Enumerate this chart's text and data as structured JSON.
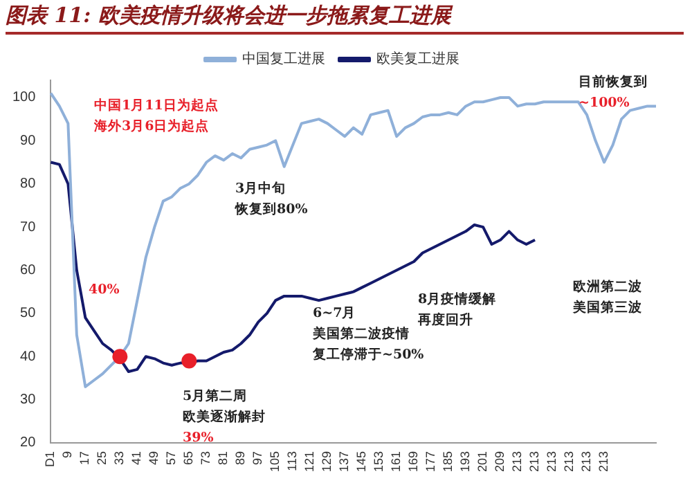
{
  "chart_data": {
    "type": "line",
    "title": "图表 11: 欧美疫情升级将会进一步拖累复工进展",
    "categories": [
      "D1",
      null,
      "9",
      null,
      "17",
      null,
      "25",
      null,
      "33",
      null,
      "41",
      null,
      "49",
      null,
      "57",
      null,
      "65",
      null,
      "73",
      null,
      "81",
      null,
      "89",
      null,
      "97",
      null,
      "105",
      null,
      "113",
      null,
      "121",
      null,
      "129",
      null,
      "137",
      null,
      "145",
      null,
      "153",
      null,
      "161",
      null,
      "169",
      null,
      "177",
      null,
      "185",
      null,
      "193",
      null,
      "201",
      null,
      "209",
      null,
      "213",
      null,
      "213",
      null,
      "213",
      null,
      "213",
      null,
      "213",
      null,
      "213",
      null,
      null,
      null,
      null,
      null,
      null
    ],
    "series": [
      {
        "name": "中国复工进展",
        "color": "#8fb0d9",
        "values": [
          101,
          98,
          94,
          45,
          33,
          34.5,
          36,
          38,
          40,
          43,
          53,
          63,
          70,
          76,
          77,
          79,
          80,
          82,
          85,
          86.5,
          85.5,
          87,
          86,
          88,
          88.5,
          89,
          90,
          84,
          89,
          94,
          94.5,
          95,
          94,
          92.5,
          91,
          93,
          91.5,
          96,
          96.5,
          97,
          91,
          93,
          94,
          95.5,
          96,
          96,
          96.5,
          96,
          98,
          99,
          99,
          99.5,
          100,
          100,
          98,
          98.5,
          98.5,
          99,
          99,
          99,
          99,
          99,
          96,
          90,
          85,
          89,
          95,
          97,
          97.5,
          98,
          98
        ]
      },
      {
        "name": "欧美复工进展",
        "color": "#141a6b",
        "values": [
          85,
          84.5,
          80,
          60,
          49,
          46,
          43,
          41.5,
          39.5,
          36.5,
          37,
          40,
          39.5,
          38.5,
          38,
          38.5,
          38.5,
          39,
          39,
          40,
          41,
          41.5,
          43,
          45,
          48,
          50,
          53,
          54,
          54,
          54,
          53.5,
          53,
          53.5,
          54,
          54.5,
          55,
          56,
          57,
          58,
          59,
          60,
          61,
          62,
          64,
          65,
          66,
          67,
          68,
          69,
          70.5,
          70,
          66,
          67,
          69,
          67,
          66,
          67,
          null,
          null,
          null,
          null,
          null,
          null,
          null,
          null,
          null,
          null,
          null,
          null,
          null,
          null
        ]
      },
      {
        "type": "scatter",
        "color": "#e8202a",
        "marker": "circle",
        "x": [
          "33",
          "65"
        ],
        "values": [
          40,
          39
        ]
      }
    ],
    "ylim": [
      20,
      104
    ],
    "yticks": [
      20,
      30,
      40,
      50,
      60,
      70,
      80,
      90,
      100
    ],
    "grid": false,
    "legend": "top",
    "marker": "none",
    "annotations": [
      "中国1月11日为起点",
      "海外3月6日为起点",
      "3月中旬",
      "恢复到80%",
      "40%",
      "5月第二周",
      "欧美逐渐解封",
      "39%",
      "6~7月",
      "美国第二波疫情",
      "复工停滞于~50%",
      "8月疫情缓解",
      "再度回升",
      "欧洲第二波",
      "美国第三波",
      "目前恢复到",
      "~100%"
    ]
  }
}
